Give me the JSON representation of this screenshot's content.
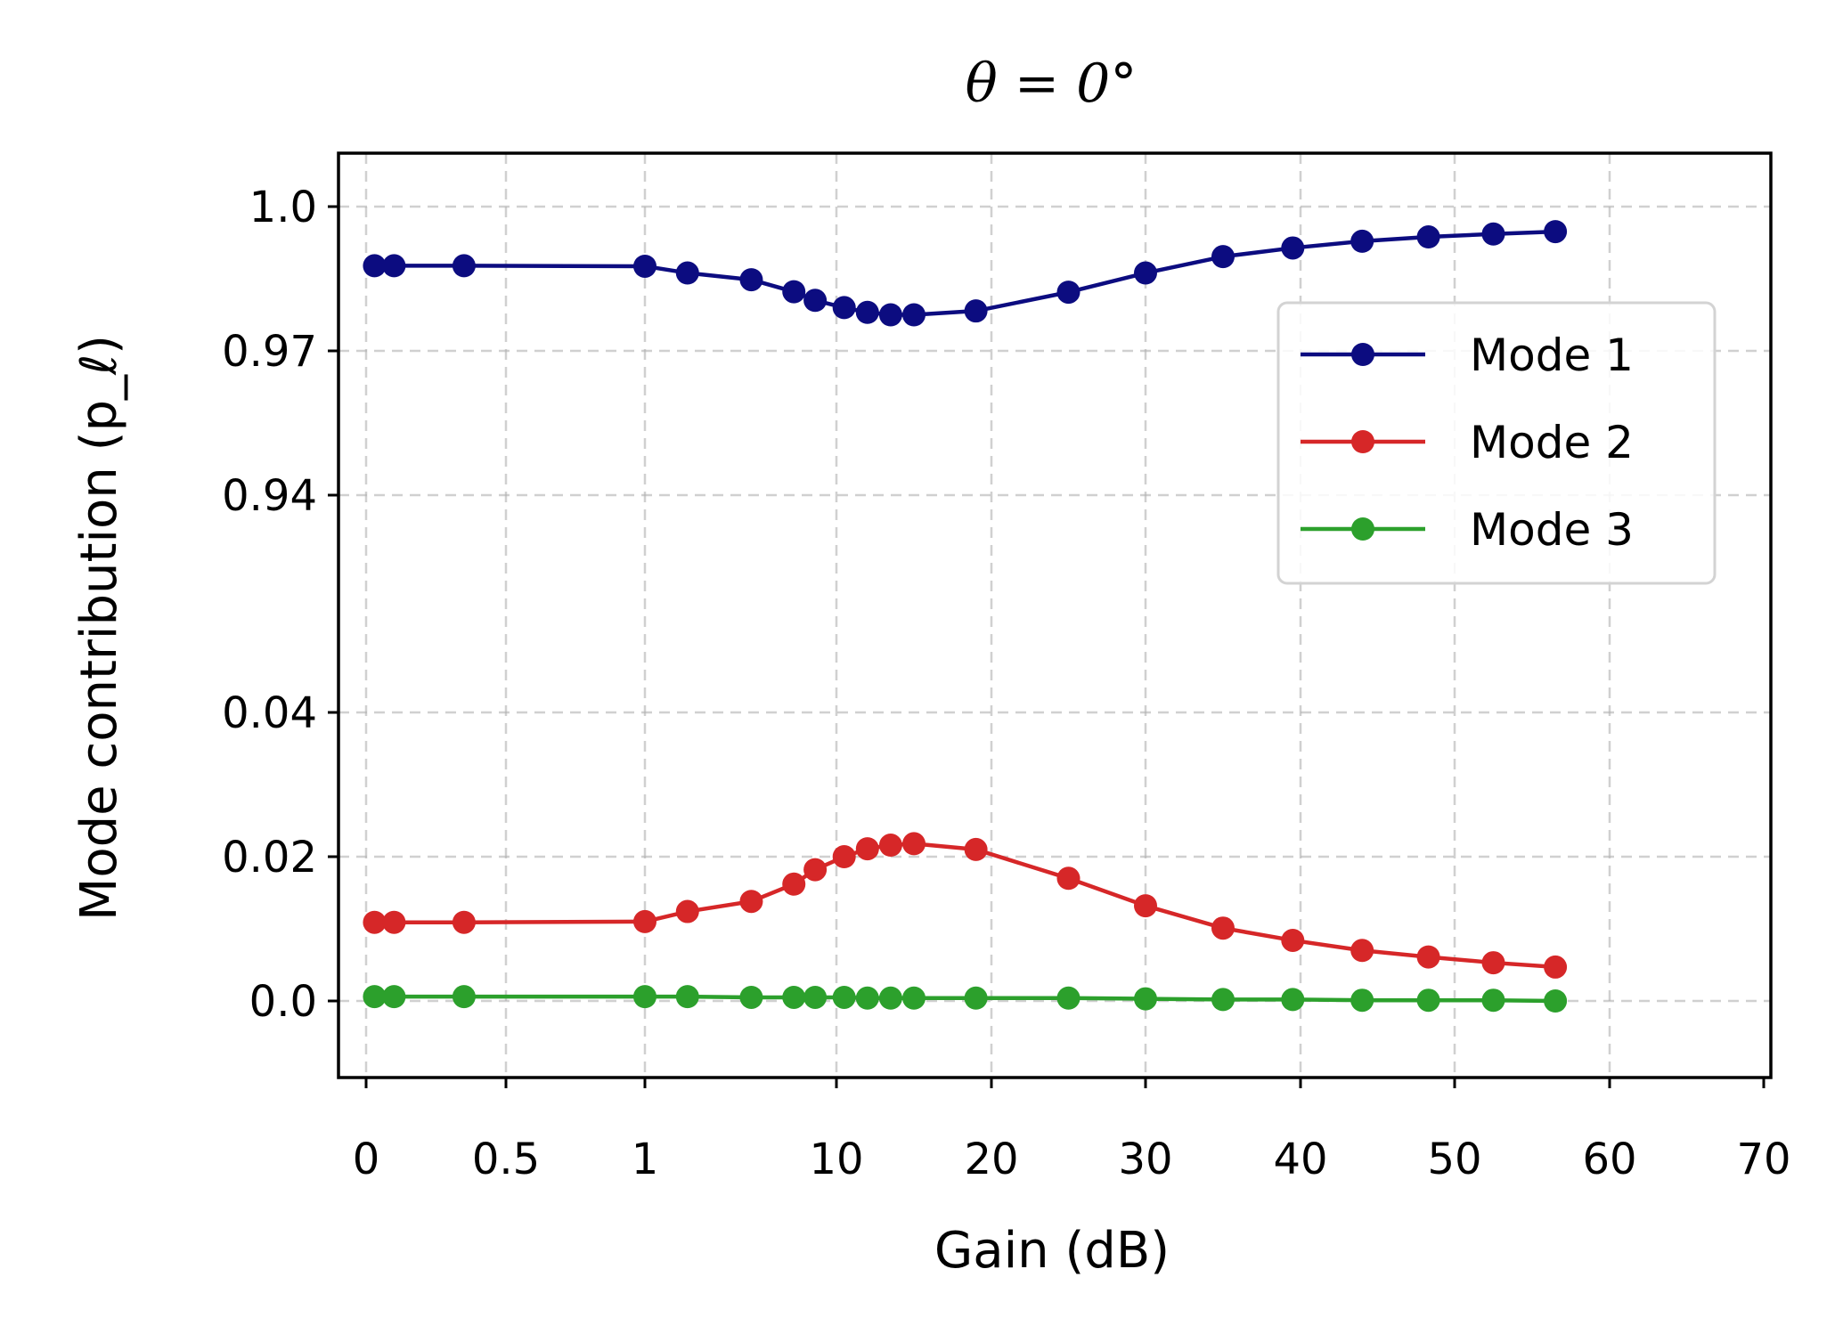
{
  "chart_data": {
    "type": "line",
    "title": "θ = 0°",
    "xlabel": "Gain (dB)",
    "ylabel": "Mode contribution (p_ℓ)",
    "x_ticks": [
      "0",
      "0.5",
      "1",
      "10",
      "20",
      "30",
      "40",
      "50",
      "60",
      "70"
    ],
    "y_ticks_upper": [
      "1.0",
      "0.97",
      "0.94"
    ],
    "y_ticks_lower": [
      "0.04",
      "0.02",
      "0.0"
    ],
    "y_axis_break": "between 0.04 and 0.94",
    "grid": true,
    "legend_position": "right",
    "x": [
      0.03,
      0.1,
      0.35,
      1,
      3,
      6,
      8,
      9,
      10.5,
      12,
      13.5,
      15,
      19,
      25,
      30,
      35,
      39.5,
      44,
      48.3,
      52.5,
      56.5
    ],
    "series": [
      {
        "name": "Mode 1",
        "color": "#0c0c80",
        "values": [
          0.9877,
          0.9877,
          0.9877,
          0.9876,
          0.9862,
          0.9848,
          0.9823,
          0.9805,
          0.979,
          0.978,
          0.9775,
          0.9775,
          0.9783,
          0.9822,
          0.9862,
          0.9896,
          0.9914,
          0.9928,
          0.9937,
          0.9943,
          0.9948
        ]
      },
      {
        "name": "Mode 2",
        "color": "#d62728",
        "values": [
          0.0109,
          0.0109,
          0.0109,
          0.011,
          0.0124,
          0.0138,
          0.0162,
          0.0182,
          0.02,
          0.0211,
          0.0216,
          0.0218,
          0.021,
          0.017,
          0.0132,
          0.0101,
          0.0084,
          0.007,
          0.0061,
          0.0053,
          0.0047
        ]
      },
      {
        "name": "Mode 3",
        "color": "#2ca02c",
        "values": [
          0.0006,
          0.0006,
          0.0006,
          0.0006,
          0.0006,
          0.0005,
          0.0005,
          0.0005,
          0.0005,
          0.0004,
          0.0004,
          0.0004,
          0.0004,
          0.0004,
          0.0003,
          0.0002,
          0.0002,
          0.0001,
          0.0001,
          0.0001,
          0.0
        ]
      }
    ]
  }
}
